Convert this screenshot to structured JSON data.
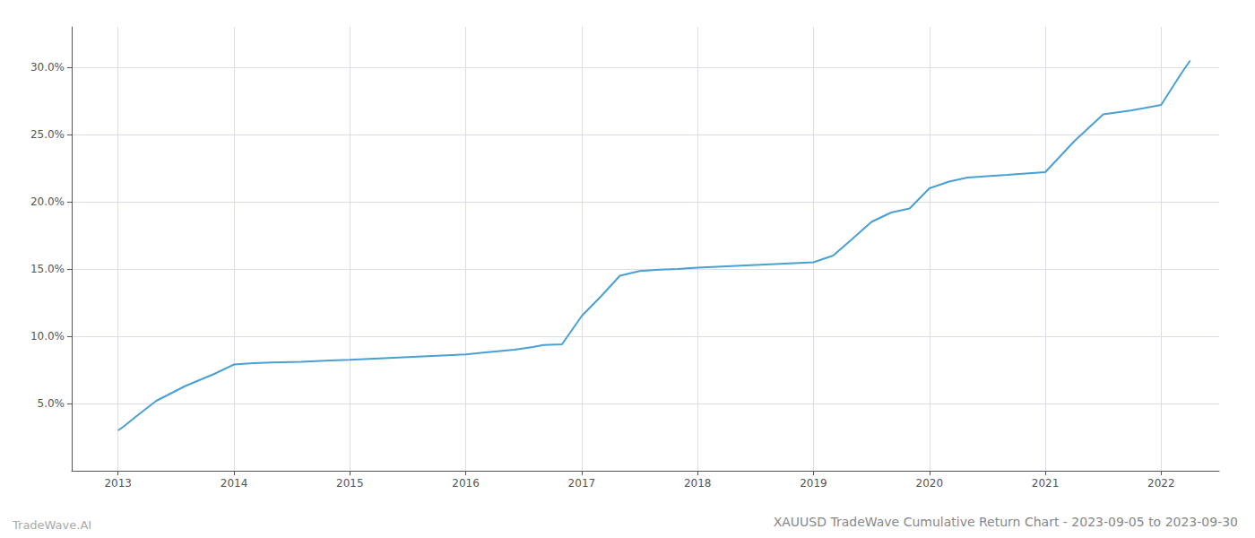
{
  "chart_data": {
    "type": "line",
    "title": "XAUUSD TradeWave Cumulative Return Chart - 2023-09-05 to 2023-09-30",
    "annotations": [
      "TradeWave.AI"
    ],
    "color": "#4a9fd4",
    "grid": true,
    "x": [
      2013.0,
      2013.05,
      2013.15,
      2013.33,
      2013.58,
      2013.83,
      2014.0,
      2014.08,
      2014.17,
      2014.33,
      2014.58,
      2014.83,
      2015.0,
      2015.25,
      2015.5,
      2015.75,
      2016.0,
      2016.17,
      2016.42,
      2016.58,
      2016.67,
      2016.83,
      2017.0,
      2017.17,
      2017.33,
      2017.5,
      2017.67,
      2017.83,
      2018.0,
      2018.25,
      2018.5,
      2018.75,
      2019.0,
      2019.17,
      2019.33,
      2019.5,
      2019.67,
      2019.83,
      2020.0,
      2020.17,
      2020.33,
      2020.5,
      2020.67,
      2020.83,
      2021.0,
      2021.25,
      2021.5,
      2021.75,
      2022.0,
      2022.17,
      2022.25
    ],
    "values": [
      3.0,
      3.3,
      4.0,
      5.2,
      6.3,
      7.2,
      7.9,
      7.95,
      8.0,
      8.05,
      8.1,
      8.2,
      8.25,
      8.35,
      8.45,
      8.55,
      8.65,
      8.8,
      9.0,
      9.2,
      9.35,
      9.4,
      11.5,
      13.0,
      14.5,
      14.85,
      14.95,
      15.0,
      15.1,
      15.2,
      15.3,
      15.4,
      15.5,
      16.0,
      17.2,
      18.5,
      19.2,
      19.5,
      21.0,
      21.5,
      21.8,
      21.9,
      22.0,
      22.1,
      22.2,
      24.5,
      26.5,
      26.8,
      27.2,
      29.5,
      30.5
    ],
    "xlim": [
      2012.6,
      2022.5
    ],
    "xticks": [
      2013,
      2014,
      2015,
      2016,
      2017,
      2018,
      2019,
      2020,
      2021,
      2022
    ],
    "ylim": [
      0,
      33
    ],
    "yticks": [
      {
        "value": 5.0,
        "label": "5.0%"
      },
      {
        "value": 10.0,
        "label": "10.0%"
      },
      {
        "value": 15.0,
        "label": "15.0%"
      },
      {
        "value": 20.0,
        "label": "20.0%"
      },
      {
        "value": 25.0,
        "label": "25.0%"
      },
      {
        "value": 30.0,
        "label": "30.0%"
      }
    ]
  }
}
